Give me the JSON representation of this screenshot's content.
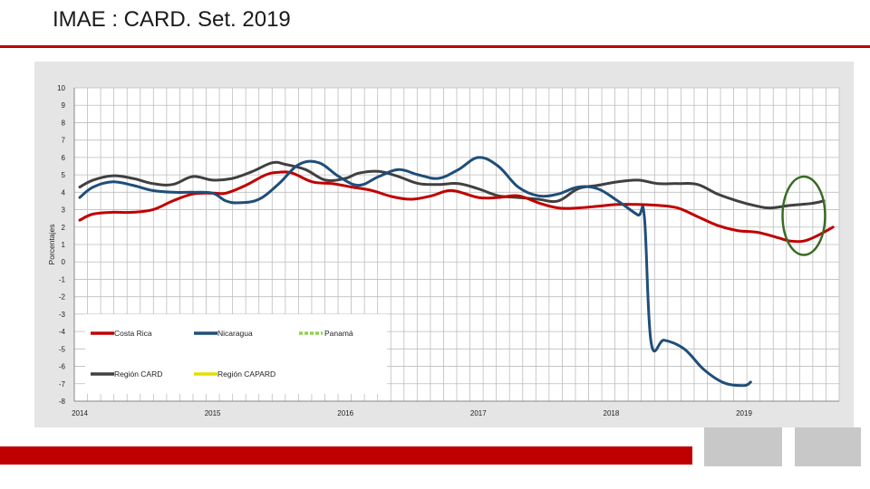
{
  "slide": {
    "title": "IMAE : CARD. Set. 2019"
  },
  "colors": {
    "accent": "#c00000",
    "highlight_ellipse": "#3a6b24"
  },
  "chart_data": {
    "type": "line",
    "title": "",
    "xlabel": "",
    "ylabel": "Porcentajes",
    "ylim": [
      -8,
      10
    ],
    "yticks": [
      10,
      9,
      8,
      7,
      6,
      5,
      4,
      3,
      2,
      1,
      0,
      -1,
      -2,
      -3,
      -4,
      -5,
      -6,
      -7,
      -8
    ],
    "xlim": [
      2014.0,
      2019.7
    ],
    "xticks": [
      "2014",
      "2015",
      "2016",
      "2017",
      "2018",
      "2019"
    ],
    "grid": true,
    "legend_position": "bottom-left",
    "annotation": {
      "type": "ellipse",
      "description": "highlight of latest values",
      "center": [
        2019.45,
        2.65
      ],
      "radius_x": 0.16,
      "radius_y": 2.25
    },
    "series": [
      {
        "name": "Costa Rica",
        "color": "#c00000",
        "x": [
          2014.0,
          2014.1,
          2014.25,
          2014.4,
          2014.55,
          2014.7,
          2014.85,
          2015.0,
          2015.1,
          2015.25,
          2015.4,
          2015.5,
          2015.6,
          2015.75,
          2015.9,
          2016.05,
          2016.2,
          2016.35,
          2016.5,
          2016.65,
          2016.8,
          2017.0,
          2017.15,
          2017.3,
          2017.45,
          2017.6,
          2017.75,
          2017.9,
          2018.05,
          2018.2,
          2018.35,
          2018.5,
          2018.65,
          2018.8,
          2018.95,
          2019.1,
          2019.25,
          2019.35,
          2019.45,
          2019.55,
          2019.67
        ],
        "values": [
          2.4,
          2.75,
          2.85,
          2.85,
          3.0,
          3.5,
          3.9,
          3.95,
          3.95,
          4.4,
          5.0,
          5.15,
          5.1,
          4.6,
          4.5,
          4.3,
          4.1,
          3.75,
          3.6,
          3.8,
          4.1,
          3.7,
          3.7,
          3.8,
          3.4,
          3.1,
          3.1,
          3.2,
          3.3,
          3.3,
          3.25,
          3.1,
          2.6,
          2.1,
          1.8,
          1.7,
          1.4,
          1.2,
          1.2,
          1.5,
          2.0
        ]
      },
      {
        "name": "Nicaragua",
        "color": "#1f4e79",
        "x": [
          2014.0,
          2014.1,
          2014.25,
          2014.4,
          2014.55,
          2014.7,
          2014.85,
          2015.0,
          2015.1,
          2015.2,
          2015.35,
          2015.5,
          2015.65,
          2015.8,
          2015.95,
          2016.1,
          2016.25,
          2016.4,
          2016.55,
          2016.7,
          2016.85,
          2017.0,
          2017.15,
          2017.3,
          2017.45,
          2017.6,
          2017.75,
          2017.9,
          2018.05,
          2018.2,
          2018.25,
          2018.3,
          2018.4,
          2018.55,
          2018.7,
          2018.85,
          2019.0,
          2019.05
        ],
        "values": [
          3.7,
          4.3,
          4.6,
          4.4,
          4.1,
          4.0,
          4.0,
          3.95,
          3.5,
          3.4,
          3.6,
          4.5,
          5.6,
          5.7,
          4.9,
          4.4,
          4.9,
          5.3,
          5.0,
          4.8,
          5.3,
          6.0,
          5.5,
          4.3,
          3.8,
          3.9,
          4.3,
          4.2,
          3.5,
          2.7,
          2.6,
          -4.6,
          -4.5,
          -5.0,
          -6.2,
          -6.95,
          -7.1,
          -6.9
        ]
      },
      {
        "name": "Panamá",
        "color": "#92d050",
        "x": [],
        "values": []
      },
      {
        "name": "Región CARD",
        "color": "#404040",
        "x": [
          2014.0,
          2014.1,
          2014.25,
          2014.4,
          2014.55,
          2014.7,
          2014.85,
          2015.0,
          2015.15,
          2015.3,
          2015.45,
          2015.55,
          2015.7,
          2015.85,
          2016.0,
          2016.1,
          2016.25,
          2016.4,
          2016.55,
          2016.7,
          2016.85,
          2017.0,
          2017.15,
          2017.3,
          2017.45,
          2017.6,
          2017.75,
          2017.9,
          2018.05,
          2018.2,
          2018.35,
          2018.5,
          2018.65,
          2018.8,
          2018.95,
          2019.1,
          2019.2,
          2019.35,
          2019.5,
          2019.6
        ],
        "values": [
          4.3,
          4.7,
          4.95,
          4.8,
          4.5,
          4.45,
          4.9,
          4.7,
          4.8,
          5.2,
          5.7,
          5.6,
          5.3,
          4.7,
          4.8,
          5.1,
          5.2,
          4.9,
          4.5,
          4.45,
          4.5,
          4.2,
          3.8,
          3.7,
          3.6,
          3.5,
          4.2,
          4.4,
          4.6,
          4.7,
          4.5,
          4.5,
          4.45,
          3.9,
          3.5,
          3.2,
          3.1,
          3.25,
          3.35,
          3.5
        ]
      },
      {
        "name": "Región CAPARD",
        "color": "#e0e000",
        "x": [],
        "values": []
      }
    ]
  }
}
